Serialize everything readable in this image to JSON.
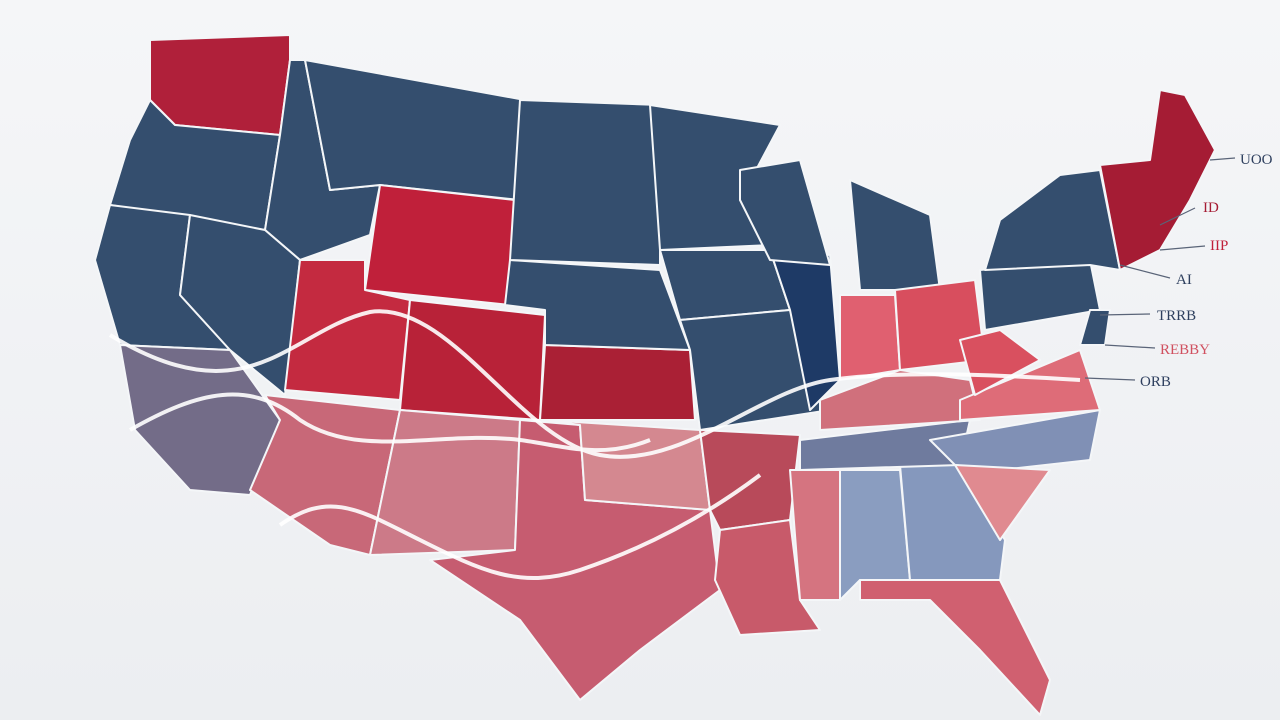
{
  "callouts": [
    {
      "text": "UOO"
    },
    {
      "text": "ID"
    },
    {
      "text": "IIP"
    },
    {
      "text": "AI"
    },
    {
      "text": "TRRB"
    },
    {
      "text": "REBBY"
    },
    {
      "text": "ORB"
    }
  ]
}
